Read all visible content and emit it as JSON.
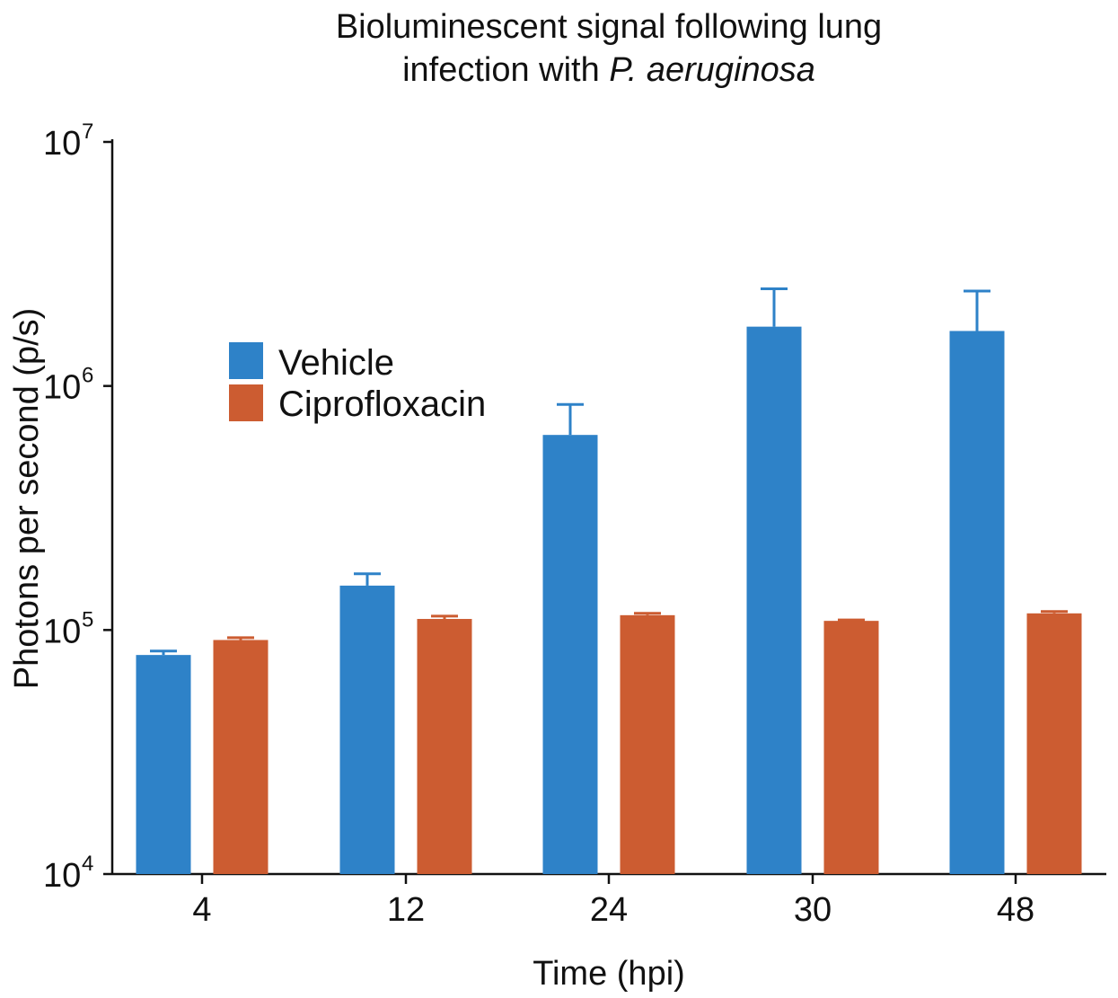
{
  "chart_data": {
    "type": "bar",
    "title_line1": "Bioluminescent signal following lung",
    "title_line2_prefix": "infection with ",
    "title_line2_italic": "P. aeruginosa",
    "xlabel": "Time (hpi)",
    "ylabel": "Photons per second (p/s)",
    "yscale": "log",
    "ylim": [
      10000,
      10000000
    ],
    "y_ticks": [
      {
        "base": "10",
        "exp": "4",
        "value": 10000
      },
      {
        "base": "10",
        "exp": "5",
        "value": 100000
      },
      {
        "base": "10",
        "exp": "6",
        "value": 1000000
      },
      {
        "base": "10",
        "exp": "7",
        "value": 10000000
      }
    ],
    "categories": [
      "4",
      "12",
      "24",
      "30",
      "48"
    ],
    "series": [
      {
        "name": "Vehicle",
        "color": "#2e82c8",
        "values": [
          79000,
          152000,
          630000,
          1750000,
          1680000
        ],
        "error_upper": [
          82000,
          170000,
          840000,
          2500000,
          2450000
        ]
      },
      {
        "name": "Ciprofloxacin",
        "color": "#cc5c31",
        "values": [
          91000,
          111000,
          115000,
          109000,
          117000
        ],
        "error_upper": [
          93000,
          114000,
          117000,
          110000,
          119000
        ]
      }
    ],
    "legend_position": "upper-left"
  }
}
